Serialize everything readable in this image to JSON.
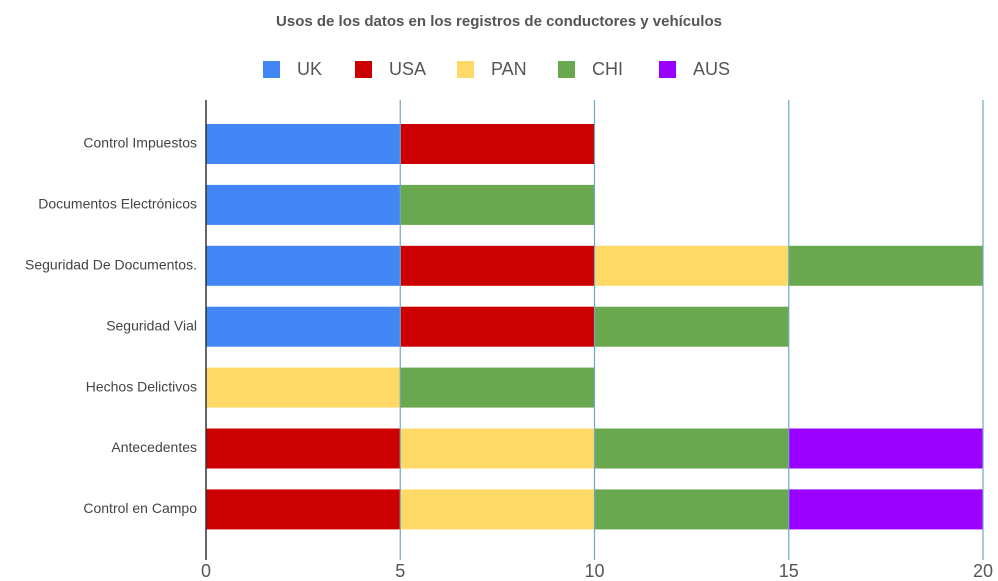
{
  "chart_data": {
    "type": "stacked_bar_horizontal",
    "title": "Usos de los datos en los registros de conductores y vehículos",
    "categories": [
      "Control Impuestos",
      "Documentos Electrónicos",
      "Seguridad De Documentos.",
      "Seguridad Vial",
      "Hechos Delictivos",
      "Antecedentes",
      "Control en Campo"
    ],
    "series": [
      {
        "name": "UK",
        "color": "#4285f4",
        "values": [
          5,
          5,
          5,
          5,
          0,
          0,
          0
        ]
      },
      {
        "name": "USA",
        "color": "#cc0000",
        "values": [
          5,
          0,
          5,
          5,
          0,
          5,
          5
        ]
      },
      {
        "name": "PAN",
        "color": "#ffd966",
        "values": [
          0,
          0,
          5,
          0,
          5,
          5,
          5
        ]
      },
      {
        "name": "CHI",
        "color": "#6aa84f",
        "values": [
          0,
          5,
          5,
          5,
          5,
          5,
          5
        ]
      },
      {
        "name": "AUS",
        "color": "#9900ff",
        "values": [
          0,
          0,
          0,
          0,
          0,
          5,
          5
        ]
      }
    ],
    "xlim": [
      0,
      20
    ],
    "xticks": [
      0,
      5,
      10,
      15,
      20
    ],
    "grid": true,
    "legend": "top"
  }
}
